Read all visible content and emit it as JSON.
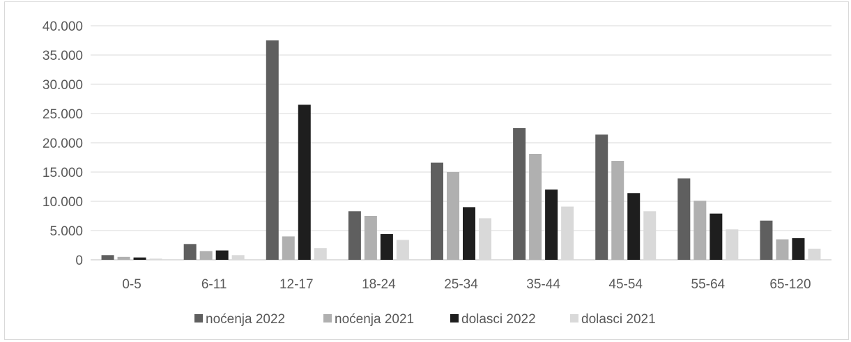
{
  "chart_data": {
    "type": "bar",
    "title": "",
    "xlabel": "",
    "ylabel": "",
    "categories": [
      "0-5",
      "6-11",
      "12-17",
      "18-24",
      "25-34",
      "35-44",
      "45-54",
      "55-64",
      "65-120"
    ],
    "y_ticks": [
      "0",
      "5.000",
      "10.000",
      "15.000",
      "20.000",
      "25.000",
      "30.000",
      "35.000",
      "40.000"
    ],
    "ylim": [
      0,
      40000
    ],
    "grid": true,
    "legend_position": "bottom",
    "series": [
      {
        "name": "noćenja 2022",
        "color": "#5f5f5f",
        "values": [
          800,
          2700,
          37500,
          8300,
          16600,
          22500,
          21400,
          13900,
          6700
        ]
      },
      {
        "name": "noćenja 2021",
        "color": "#b0b0b0",
        "values": [
          500,
          1500,
          4000,
          7500,
          15000,
          18100,
          16900,
          10100,
          3500
        ]
      },
      {
        "name": "dolasci 2022",
        "color": "#1e1e1e",
        "values": [
          400,
          1600,
          26500,
          4400,
          9000,
          12000,
          11400,
          7900,
          3700
        ]
      },
      {
        "name": "dolasci 2021",
        "color": "#d9d9d9",
        "values": [
          200,
          800,
          2000,
          3400,
          7100,
          9100,
          8300,
          5200,
          1900
        ]
      }
    ]
  }
}
